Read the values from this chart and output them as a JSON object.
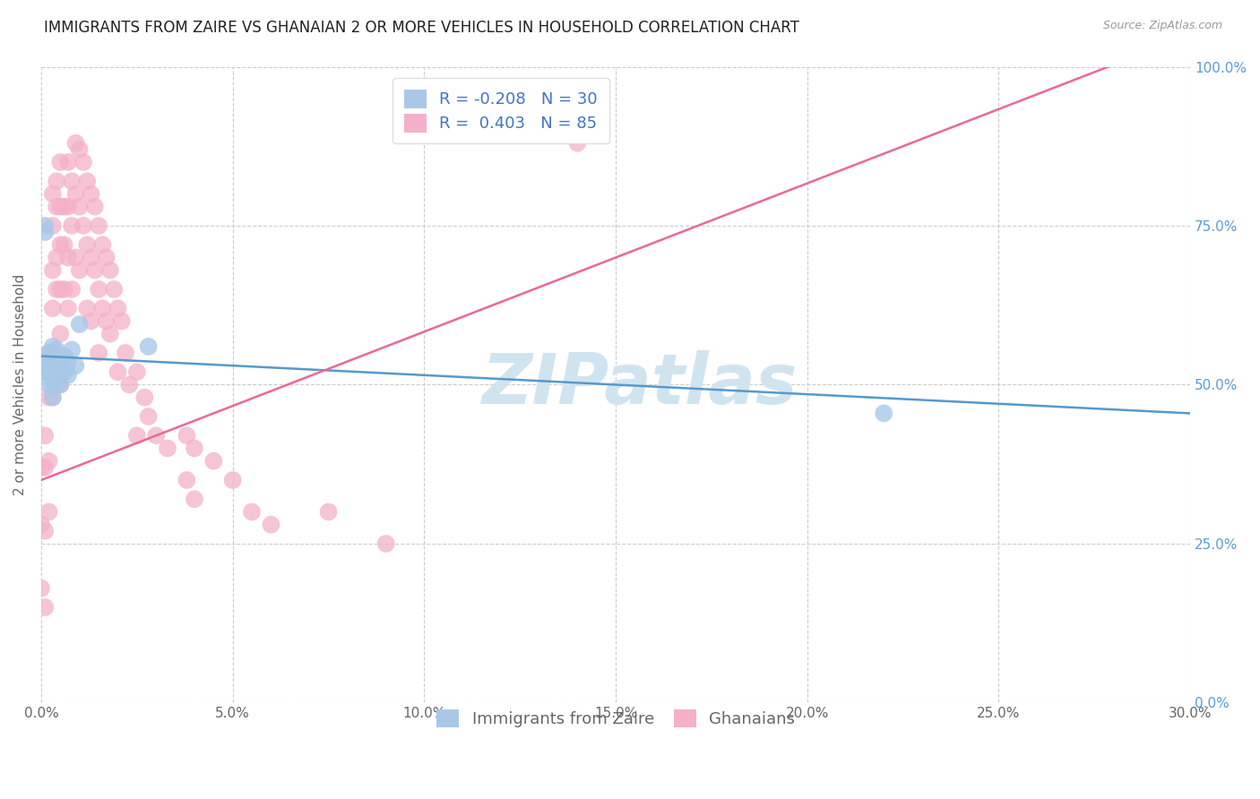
{
  "title": "IMMIGRANTS FROM ZAIRE VS GHANAIAN 2 OR MORE VEHICLES IN HOUSEHOLD CORRELATION CHART",
  "source": "Source: ZipAtlas.com",
  "xmin": 0.0,
  "xmax": 0.3,
  "ymin": 0.0,
  "ymax": 1.0,
  "ylabel": "2 or more Vehicles in Household",
  "legend_labels": [
    "Immigrants from Zaire",
    "Ghanaians"
  ],
  "zaire_R": -0.208,
  "zaire_N": 30,
  "ghana_R": 0.403,
  "ghana_N": 85,
  "color_zaire": "#a8c8e8",
  "color_ghana": "#f4b0c8",
  "line_color_zaire": "#5599cc",
  "line_color_ghana": "#ee6699",
  "watermark": "ZIPatlas",
  "watermark_color": "#d0e4f0",
  "title_fontsize": 12,
  "axis_label_fontsize": 11,
  "tick_fontsize": 11,
  "legend_fontsize": 13,
  "zaire_x": [
    0.0,
    0.001,
    0.001,
    0.001,
    0.002,
    0.002,
    0.002,
    0.002,
    0.003,
    0.003,
    0.003,
    0.003,
    0.003,
    0.003,
    0.004,
    0.004,
    0.004,
    0.004,
    0.005,
    0.005,
    0.005,
    0.006,
    0.006,
    0.007,
    0.007,
    0.008,
    0.009,
    0.01,
    0.028,
    0.22
  ],
  "zaire_y": [
    0.53,
    0.75,
    0.74,
    0.52,
    0.55,
    0.53,
    0.52,
    0.5,
    0.56,
    0.55,
    0.53,
    0.515,
    0.5,
    0.48,
    0.555,
    0.535,
    0.53,
    0.5,
    0.535,
    0.52,
    0.5,
    0.545,
    0.52,
    0.535,
    0.515,
    0.555,
    0.53,
    0.595,
    0.56,
    0.455
  ],
  "ghana_x": [
    0.0,
    0.0,
    0.0,
    0.001,
    0.001,
    0.001,
    0.001,
    0.002,
    0.002,
    0.002,
    0.002,
    0.003,
    0.003,
    0.003,
    0.003,
    0.003,
    0.003,
    0.004,
    0.004,
    0.004,
    0.004,
    0.005,
    0.005,
    0.005,
    0.005,
    0.005,
    0.005,
    0.006,
    0.006,
    0.006,
    0.007,
    0.007,
    0.007,
    0.007,
    0.008,
    0.008,
    0.008,
    0.009,
    0.009,
    0.009,
    0.01,
    0.01,
    0.01,
    0.011,
    0.011,
    0.012,
    0.012,
    0.012,
    0.013,
    0.013,
    0.013,
    0.014,
    0.014,
    0.015,
    0.015,
    0.015,
    0.016,
    0.016,
    0.017,
    0.017,
    0.018,
    0.018,
    0.019,
    0.02,
    0.02,
    0.021,
    0.022,
    0.023,
    0.025,
    0.025,
    0.027,
    0.028,
    0.03,
    0.033,
    0.038,
    0.038,
    0.04,
    0.04,
    0.045,
    0.05,
    0.055,
    0.06,
    0.075,
    0.09,
    0.14
  ],
  "ghana_y": [
    0.37,
    0.28,
    0.18,
    0.42,
    0.37,
    0.27,
    0.15,
    0.55,
    0.48,
    0.38,
    0.3,
    0.8,
    0.75,
    0.68,
    0.62,
    0.55,
    0.48,
    0.82,
    0.78,
    0.7,
    0.65,
    0.85,
    0.78,
    0.72,
    0.65,
    0.58,
    0.5,
    0.78,
    0.72,
    0.65,
    0.85,
    0.78,
    0.7,
    0.62,
    0.82,
    0.75,
    0.65,
    0.88,
    0.8,
    0.7,
    0.87,
    0.78,
    0.68,
    0.85,
    0.75,
    0.82,
    0.72,
    0.62,
    0.8,
    0.7,
    0.6,
    0.78,
    0.68,
    0.75,
    0.65,
    0.55,
    0.72,
    0.62,
    0.7,
    0.6,
    0.68,
    0.58,
    0.65,
    0.62,
    0.52,
    0.6,
    0.55,
    0.5,
    0.52,
    0.42,
    0.48,
    0.45,
    0.42,
    0.4,
    0.42,
    0.35,
    0.4,
    0.32,
    0.38,
    0.35,
    0.3,
    0.28,
    0.3,
    0.25,
    0.88
  ]
}
